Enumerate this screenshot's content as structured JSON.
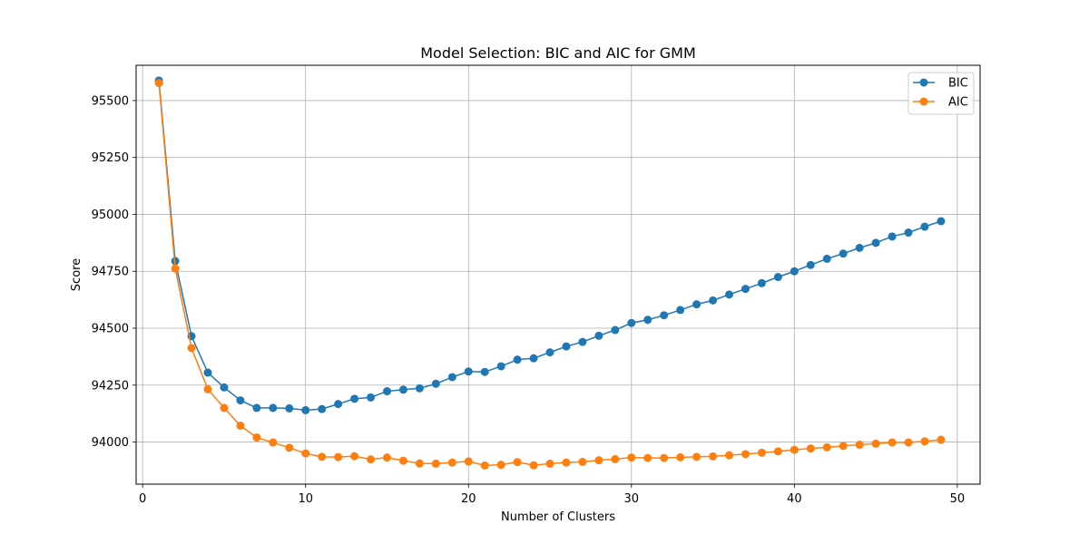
{
  "chart_data": {
    "type": "line",
    "title": "Model Selection: BIC and AIC for GMM",
    "xlabel": "Number of Clusters",
    "ylabel": "Score",
    "xlim": [
      -0.4,
      51.4
    ],
    "ylim": [
      93815,
      95655
    ],
    "xticks": [
      0,
      10,
      20,
      30,
      40,
      50
    ],
    "yticks": [
      94000,
      94250,
      94500,
      94750,
      95000,
      95250,
      95500
    ],
    "grid": true,
    "legend_position": "top-right",
    "x": [
      1,
      2,
      3,
      4,
      5,
      6,
      7,
      8,
      9,
      10,
      11,
      12,
      13,
      14,
      15,
      16,
      17,
      18,
      19,
      20,
      21,
      22,
      23,
      24,
      25,
      26,
      27,
      28,
      29,
      30,
      31,
      32,
      33,
      34,
      35,
      36,
      37,
      38,
      39,
      40,
      41,
      42,
      43,
      44,
      45,
      46,
      47,
      48,
      49
    ],
    "series": [
      {
        "name": "BIC",
        "color": "#1f77b4",
        "values": [
          95588,
          94795,
          94465,
          94305,
          94240,
          94183,
          94150,
          94150,
          94148,
          94140,
          94145,
          94167,
          94190,
          94196,
          94223,
          94230,
          94236,
          94256,
          94285,
          94310,
          94308,
          94333,
          94362,
          94368,
          94394,
          94420,
          94440,
          94467,
          94492,
          94523,
          94537,
          94557,
          94580,
          94605,
          94622,
          94648,
          94673,
          94698,
          94725,
          94750,
          94778,
          94805,
          94828,
          94853,
          94875,
          94903,
          94920,
          94946,
          94970
        ]
      },
      {
        "name": "AIC",
        "color": "#ff7f0e",
        "values": [
          95577,
          94762,
          94413,
          94232,
          94150,
          94072,
          94020,
          93998,
          93975,
          93950,
          93935,
          93934,
          93938,
          93924,
          93932,
          93918,
          93906,
          93905,
          93910,
          93915,
          93897,
          93900,
          93912,
          93898,
          93905,
          93910,
          93913,
          93920,
          93925,
          93932,
          93930,
          93930,
          93933,
          93935,
          93937,
          93942,
          93947,
          93953,
          93959,
          93966,
          93972,
          93977,
          93983,
          93988,
          93993,
          93998,
          93998,
          94003,
          94010
        ]
      }
    ]
  }
}
